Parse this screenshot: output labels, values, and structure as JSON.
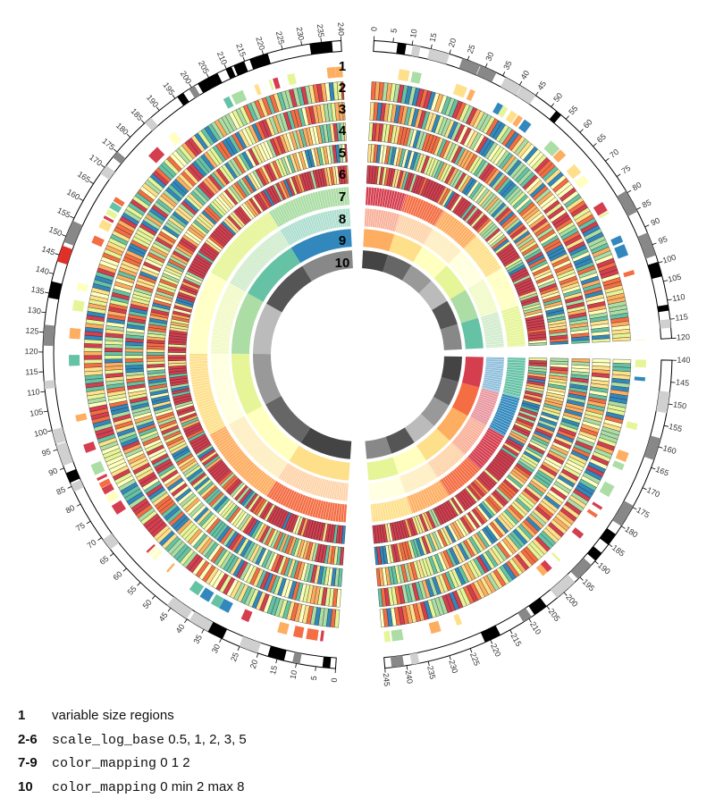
{
  "figure": {
    "track_numbers": [
      "1",
      "2",
      "3",
      "4",
      "5",
      "6",
      "7",
      "8",
      "9",
      "10"
    ],
    "ideograms": [
      {
        "id": "chr1",
        "tick_labels": [
          "0",
          "5",
          "10",
          "15",
          "20",
          "25",
          "30",
          "35",
          "40",
          "45",
          "50",
          "55",
          "60",
          "65",
          "70",
          "75",
          "80",
          "85",
          "90",
          "95",
          "100",
          "105",
          "110",
          "115",
          "120",
          "125",
          "130",
          "135",
          "140",
          "145",
          "150",
          "155",
          "160",
          "165",
          "170",
          "175",
          "180",
          "185",
          "190",
          "195",
          "200",
          "205",
          "210",
          "215",
          "220",
          "225",
          "230",
          "235",
          "240"
        ]
      },
      {
        "id": "chr2",
        "tick_labels": [
          "0",
          "5",
          "10",
          "15",
          "20",
          "25",
          "30",
          "35",
          "40",
          "45",
          "50",
          "55",
          "60",
          "65",
          "70",
          "75",
          "80",
          "85",
          "90",
          "95",
          "100",
          "105",
          "110",
          "115",
          "120"
        ]
      },
      {
        "id": "chr3",
        "tick_labels": [
          "140",
          "145",
          "150",
          "155",
          "160",
          "165",
          "170",
          "175",
          "180",
          "185",
          "190",
          "195",
          "200",
          "205",
          "210",
          "215",
          "220",
          "225",
          "230",
          "235",
          "240",
          "245"
        ]
      }
    ],
    "colors": {
      "spectral_scale": [
        "#d53e4f",
        "#f46d43",
        "#fdae61",
        "#fee08b",
        "#ffffbf",
        "#e6f598",
        "#abdda4",
        "#66c2a5",
        "#3288bd"
      ],
      "band_gray": "#888888",
      "band_black": "#000000",
      "band_light": "#d0d0d0",
      "band_red": "#e0302a"
    }
  },
  "legend": [
    {
      "key": "1",
      "text": "variable size regions",
      "code": "",
      "args": ""
    },
    {
      "key": "2-6",
      "text": "",
      "code": "scale_log_base",
      "args": "0.5, 1, 2, 3, 5"
    },
    {
      "key": "7-9",
      "text": "",
      "code": "color_mapping",
      "args": "0 1 2"
    },
    {
      "key": "10",
      "text": "",
      "code": "color_mapping",
      "args": "0 min 2 max 8"
    }
  ]
}
